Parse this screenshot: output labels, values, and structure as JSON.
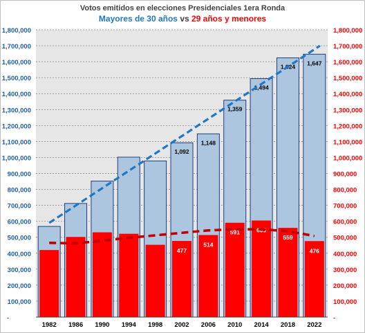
{
  "chart_data": {
    "type": "bar",
    "title": "Votos emitidos en elecciones Presidenciales 1era Ronda",
    "subtitle": {
      "part1": "Mayores de 30 años",
      "connector": " vs ",
      "part2": "29 años y menores"
    },
    "categories": [
      "1982",
      "1986",
      "1990",
      "1994",
      "1998",
      "2002",
      "2006",
      "2010",
      "2014",
      "2018",
      "2022"
    ],
    "ylim": [
      0,
      1800000
    ],
    "y_ticks": [
      "-",
      "100,000",
      "200,000",
      "300,000",
      "400,000",
      "500,000",
      "600,000",
      "700,000",
      "800,000",
      "900,000",
      "1,000,000",
      "1,100,000",
      "1,200,000",
      "1,300,000",
      "1,400,000",
      "1,500,000",
      "1,600,000",
      "1,700,000",
      "1,800,000"
    ],
    "grid": true,
    "series": [
      {
        "name": "Mayores de 30 años",
        "color": "#adc6e0",
        "border": "#1f3d7a",
        "values": [
          568000,
          712000,
          852000,
          1002000,
          978000,
          1092000,
          1148000,
          1359000,
          1494000,
          1624000,
          1647000
        ],
        "labels": [
          "",
          "",
          "",
          "",
          "",
          "1,092",
          "1,148",
          "1,359",
          "1,494",
          "1,624",
          "1,647"
        ]
      },
      {
        "name": "29 años y menores",
        "color": "#ff0000",
        "values": [
          420000,
          502000,
          531000,
          522000,
          453000,
          477000,
          514000,
          591000,
          605000,
          559000,
          476000
        ],
        "labels": [
          "",
          "",
          "",
          "",
          "",
          "477",
          "514",
          "591",
          "605",
          "559",
          "476"
        ]
      }
    ],
    "trendlines": [
      {
        "series": "Mayores de 30 años",
        "color": "#1f77c8",
        "style": "dashed",
        "from": 590000,
        "to": 1700000
      },
      {
        "series": "29 años y menores",
        "color": "#c00000",
        "style": "dashed",
        "values": [
          465000,
          462000,
          478000,
          497000,
          512000,
          528000,
          543000,
          550000,
          550000,
          538000,
          508000
        ]
      }
    ]
  }
}
